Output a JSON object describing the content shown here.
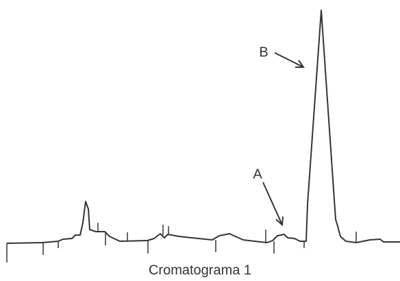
{
  "labels": {
    "a": "A",
    "b": "B"
  },
  "caption": "Cromatograma 1"
}
